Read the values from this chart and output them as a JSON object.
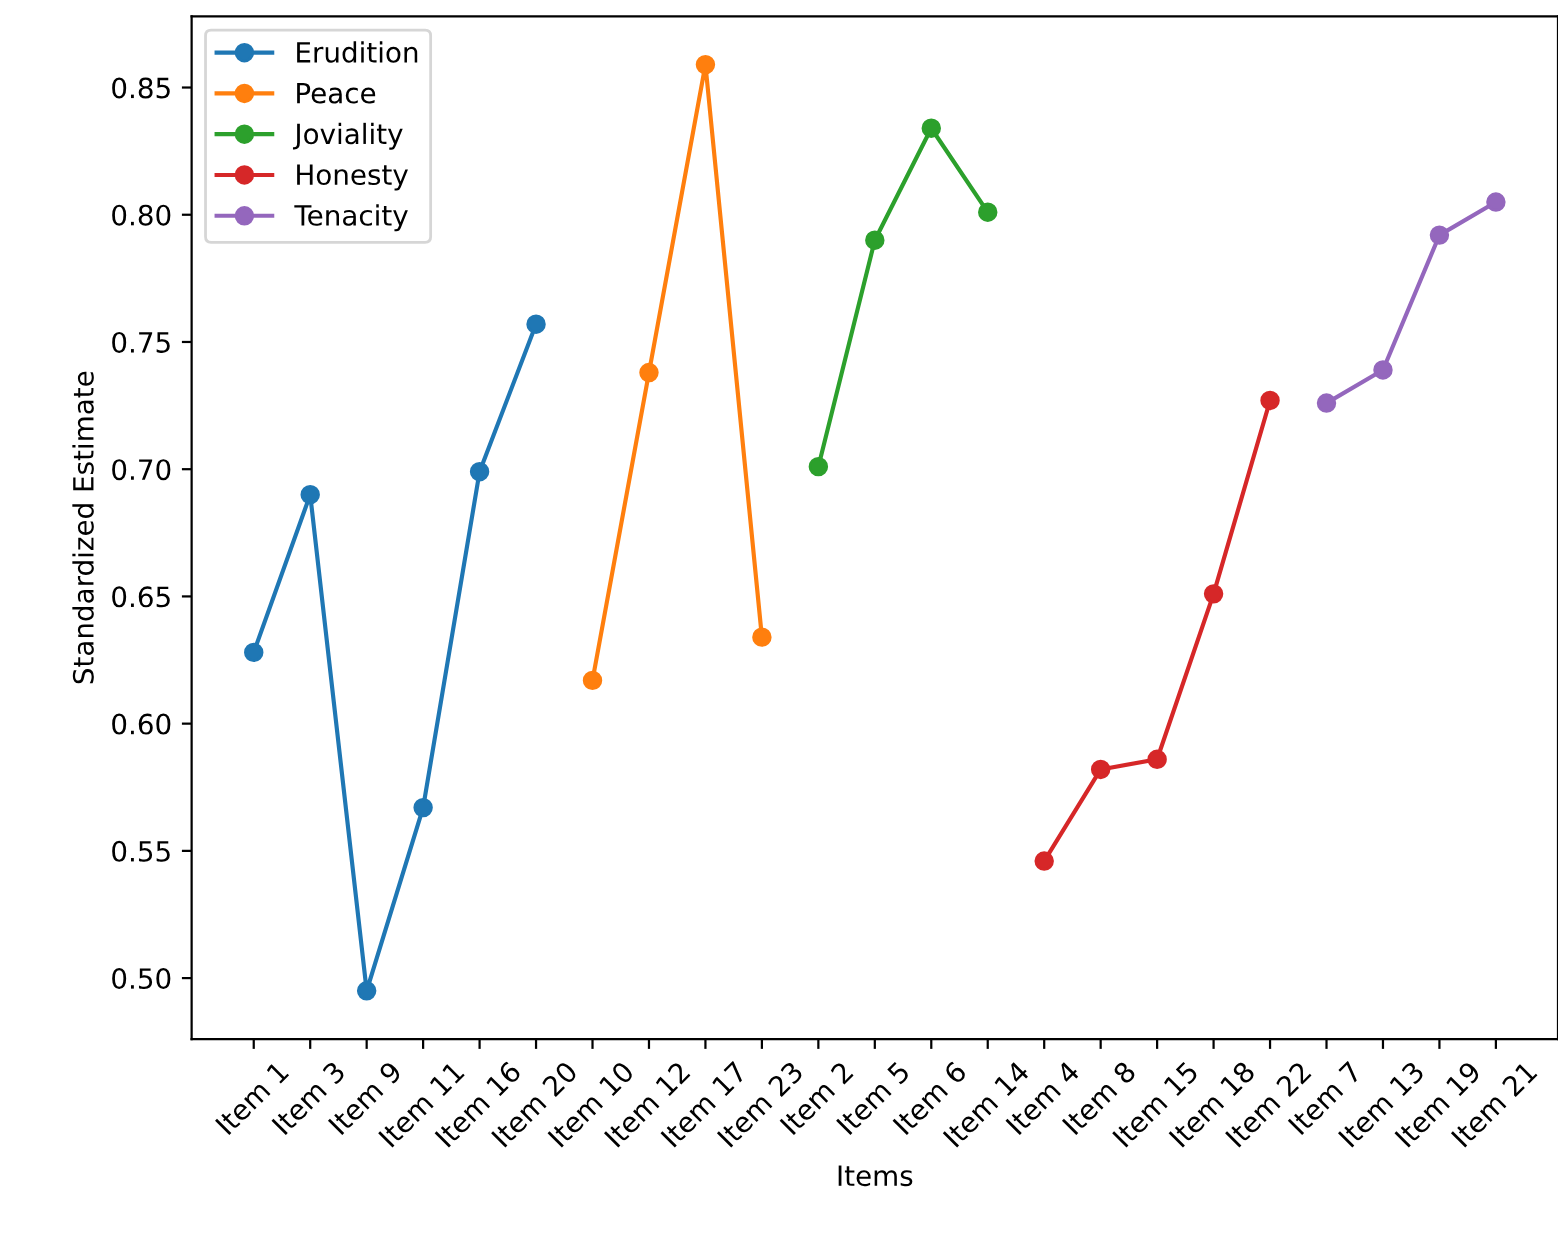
{
  "chart_data": {
    "type": "line",
    "xlabel": "Items",
    "ylabel": "Standardized Estimate",
    "categories": [
      "Item 1",
      "Item 3",
      "Item 9",
      "Item 11",
      "Item 16",
      "Item 20",
      "Item 10",
      "Item 12",
      "Item 17",
      "Item 23",
      "Item 2",
      "Item 5",
      "Item 6",
      "Item 14",
      "Item 4",
      "Item 8",
      "Item 15",
      "Item 18",
      "Item 22",
      "Item 7",
      "Item 13",
      "Item 19",
      "Item 21"
    ],
    "series": [
      {
        "name": "Erudition",
        "color": "#1f77b4",
        "values": [
          0.628,
          0.69,
          0.495,
          0.567,
          0.699,
          0.757,
          null,
          null,
          null,
          null,
          null,
          null,
          null,
          null,
          null,
          null,
          null,
          null,
          null,
          null,
          null,
          null,
          null
        ]
      },
      {
        "name": "Peace",
        "color": "#ff7f0e",
        "values": [
          null,
          null,
          null,
          null,
          null,
          null,
          0.617,
          0.738,
          0.859,
          0.634,
          null,
          null,
          null,
          null,
          null,
          null,
          null,
          null,
          null,
          null,
          null,
          null,
          null
        ]
      },
      {
        "name": "Joviality",
        "color": "#2ca02c",
        "values": [
          null,
          null,
          null,
          null,
          null,
          null,
          null,
          null,
          null,
          null,
          0.701,
          0.79,
          0.834,
          0.801,
          null,
          null,
          null,
          null,
          null,
          null,
          null,
          null,
          null
        ]
      },
      {
        "name": "Honesty",
        "color": "#d62728",
        "values": [
          null,
          null,
          null,
          null,
          null,
          null,
          null,
          null,
          null,
          null,
          null,
          null,
          null,
          null,
          0.546,
          0.582,
          0.586,
          0.651,
          0.727,
          null,
          null,
          null,
          null
        ]
      },
      {
        "name": "Tenacity",
        "color": "#9467bd",
        "values": [
          null,
          null,
          null,
          null,
          null,
          null,
          null,
          null,
          null,
          null,
          null,
          null,
          null,
          null,
          null,
          null,
          null,
          null,
          null,
          0.726,
          0.739,
          0.792,
          0.805
        ]
      }
    ],
    "ylim": [
      0.476,
      0.878
    ],
    "yticks": [
      {
        "value": 0.5,
        "label": "0.50"
      },
      {
        "value": 0.55,
        "label": "0.55"
      },
      {
        "value": 0.6,
        "label": "0.60"
      },
      {
        "value": 0.65,
        "label": "0.65"
      },
      {
        "value": 0.7,
        "label": "0.70"
      },
      {
        "value": 0.75,
        "label": "0.75"
      },
      {
        "value": 0.8,
        "label": "0.80"
      },
      {
        "value": 0.85,
        "label": "0.85"
      }
    ],
    "marker": "circle",
    "line_style": "solid",
    "legend": "top left",
    "grid": false
  }
}
